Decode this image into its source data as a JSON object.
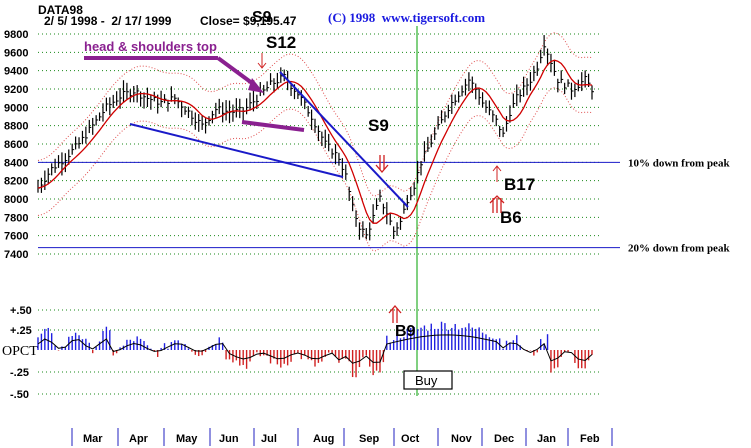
{
  "header": {
    "symbol": "DATA98",
    "date_range": "2/ 5/ 1998 -  2/ 17/ 1999",
    "close_label": "Close= $9,195.47",
    "copyright": "(C) 1998  www.tigersoft.com"
  },
  "chart_data": [
    {
      "type": "line",
      "name": "price-chart",
      "y_ticks": [
        9800,
        9600,
        9400,
        9200,
        9000,
        8800,
        8600,
        8400,
        8200,
        8000,
        7800,
        7600,
        7400
      ],
      "ylim": [
        7300,
        9850
      ],
      "x_months": [
        "Mar",
        "Apr",
        "May",
        "Jun",
        "Jul",
        "Aug",
        "Sep",
        "Oct",
        "Nov",
        "Dec",
        "Jan",
        "Feb"
      ],
      "close_points": [
        [
          0,
          8120
        ],
        [
          4,
          8330
        ],
        [
          8,
          8450
        ],
        [
          12,
          8600
        ],
        [
          16,
          8800
        ],
        [
          20,
          9000
        ],
        [
          24,
          9120
        ],
        [
          28,
          9180
        ],
        [
          32,
          9100
        ],
        [
          36,
          9050
        ],
        [
          40,
          9100
        ],
        [
          44,
          8950
        ],
        [
          48,
          8800
        ],
        [
          52,
          8980
        ],
        [
          56,
          8950
        ],
        [
          60,
          8960
        ],
        [
          64,
          9100
        ],
        [
          68,
          9250
        ],
        [
          72,
          9330
        ],
        [
          76,
          9150
        ],
        [
          80,
          8900
        ],
        [
          84,
          8600
        ],
        [
          88,
          8450
        ],
        [
          90,
          8250
        ],
        [
          92,
          7900
        ],
        [
          94,
          7700
        ],
        [
          96,
          7600
        ],
        [
          98,
          7800
        ],
        [
          100,
          8000
        ],
        [
          102,
          7850
        ],
        [
          104,
          7650
        ],
        [
          106,
          7750
        ],
        [
          108,
          8000
        ],
        [
          110,
          8150
        ],
        [
          112,
          8400
        ],
        [
          114,
          8550
        ],
        [
          116,
          8700
        ],
        [
          118,
          8850
        ],
        [
          120,
          9000
        ],
        [
          122,
          9100
        ],
        [
          124,
          9200
        ],
        [
          126,
          9300
        ],
        [
          128,
          9200
        ],
        [
          130,
          9050
        ],
        [
          132,
          8950
        ],
        [
          134,
          8850
        ],
        [
          136,
          8700
        ],
        [
          138,
          8950
        ],
        [
          140,
          9100
        ],
        [
          142,
          9200
        ],
        [
          144,
          9300
        ],
        [
          146,
          9450
        ],
        [
          148,
          9700
        ],
        [
          150,
          9500
        ],
        [
          152,
          9300
        ],
        [
          154,
          9250
        ],
        [
          156,
          9200
        ],
        [
          158,
          9250
        ],
        [
          160,
          9300
        ],
        [
          162,
          9200
        ]
      ],
      "reference_lines": [
        {
          "value": 8400,
          "label": "10% down from peak"
        },
        {
          "value": 7470,
          "label": "20% down from peak"
        }
      ],
      "annotations": [
        {
          "label": "head & shoulders top"
        },
        {
          "label": "S9"
        },
        {
          "label": "S12"
        },
        {
          "label": "S9"
        },
        {
          "label": "B17"
        },
        {
          "label": "B6"
        }
      ],
      "grid": true
    },
    {
      "type": "bar",
      "name": "opct-indicator",
      "ylabel": "OPCT",
      "y_ticks": [
        "+.50",
        "+.25",
        "-.25",
        "-.50"
      ],
      "ylim": [
        -0.55,
        0.55
      ],
      "annotations": [
        {
          "label": "B9"
        },
        {
          "label": "Buy"
        }
      ],
      "grid": true
    }
  ],
  "colors": {
    "price": "#000000",
    "ma": "#d00000",
    "band": "#e05050",
    "trendline": "#1a1ac8",
    "positive": "#2020e0",
    "negative": "#d02020",
    "signal_green": "#00a000",
    "hs_arrow": "#8a2090"
  }
}
